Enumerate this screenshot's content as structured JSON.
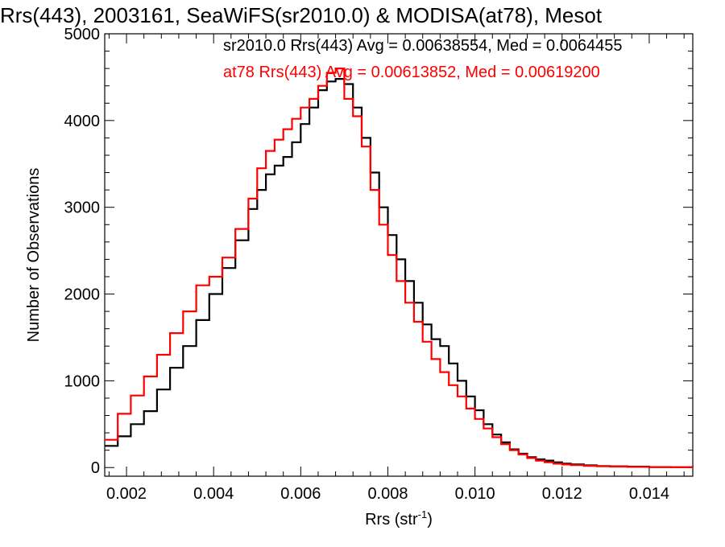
{
  "chart_data": {
    "type": "line",
    "title": "Rrs(443), 2003161, SeaWiFS(sr2010.0) & MODISA(at78), Mesot",
    "xlabel": "Rrs (str",
    "xlabel_sup": "-1",
    "xlabel_close": ")",
    "ylabel": "Number of Observations",
    "xlim": [
      0.0015,
      0.015
    ],
    "ylim": [
      -100,
      5000
    ],
    "x_ticks": [
      0.002,
      0.004,
      0.006,
      0.008,
      0.01,
      0.012,
      0.014
    ],
    "x_tick_labels": [
      "0.002",
      "0.004",
      "0.006",
      "0.008",
      "0.010",
      "0.012",
      "0.014"
    ],
    "y_ticks": [
      0,
      1000,
      2000,
      3000,
      4000,
      5000
    ],
    "y_tick_labels": [
      "0",
      "1000",
      "2000",
      "3000",
      "4000",
      "5000"
    ],
    "grid": false,
    "legend_placement": "top",
    "annotations": [
      {
        "text": "sr2010.0 Rrs(443) Avg = 0.00638554, Med = 0.0064455",
        "color": "#000000"
      },
      {
        "text": "at78 Rrs(443) Avg = 0.00613852, Med = 0.00619200",
        "color": "#ff0000"
      }
    ],
    "series": [
      {
        "color": "#000000",
        "x": [
          0.0015,
          0.0018,
          0.0021,
          0.0024,
          0.0027,
          0.003,
          0.0033,
          0.0036,
          0.0039,
          0.0042,
          0.0045,
          0.0048,
          0.005,
          0.0052,
          0.0054,
          0.0056,
          0.0058,
          0.006,
          0.0062,
          0.0064,
          0.0066,
          0.0068,
          0.007,
          0.0072,
          0.0074,
          0.0076,
          0.0078,
          0.008,
          0.0082,
          0.0084,
          0.0086,
          0.0088,
          0.009,
          0.0092,
          0.0094,
          0.0096,
          0.0098,
          0.01,
          0.0102,
          0.0104,
          0.0106,
          0.0108,
          0.011,
          0.0112,
          0.0114,
          0.0116,
          0.0118,
          0.012,
          0.0122,
          0.0125,
          0.0128,
          0.0131,
          0.0135,
          0.014,
          0.0145,
          0.015
        ],
        "values": [
          250,
          360,
          500,
          650,
          900,
          1150,
          1400,
          1700,
          2000,
          2300,
          2620,
          2980,
          3200,
          3380,
          3480,
          3580,
          3750,
          3960,
          4150,
          4350,
          4450,
          4480,
          4420,
          4150,
          3800,
          3400,
          3000,
          2680,
          2400,
          2150,
          1900,
          1650,
          1480,
          1400,
          1200,
          1000,
          820,
          660,
          500,
          380,
          290,
          210,
          160,
          120,
          95,
          80,
          60,
          45,
          35,
          25,
          18,
          14,
          10,
          6,
          3,
          2
        ]
      },
      {
        "color": "#ff0000",
        "x": [
          0.0015,
          0.0018,
          0.0021,
          0.0024,
          0.0027,
          0.003,
          0.0033,
          0.0036,
          0.0039,
          0.0042,
          0.0045,
          0.0048,
          0.005,
          0.0052,
          0.0054,
          0.0056,
          0.0058,
          0.006,
          0.0062,
          0.0064,
          0.0066,
          0.0068,
          0.007,
          0.0072,
          0.0074,
          0.0076,
          0.0078,
          0.008,
          0.0082,
          0.0084,
          0.0086,
          0.0088,
          0.009,
          0.0092,
          0.0094,
          0.0096,
          0.0098,
          0.01,
          0.0102,
          0.0104,
          0.0106,
          0.0108,
          0.011,
          0.0112,
          0.0114,
          0.0116,
          0.0118,
          0.012,
          0.0122,
          0.0125,
          0.0128,
          0.0131,
          0.0135,
          0.014,
          0.0145,
          0.015
        ],
        "values": [
          320,
          620,
          830,
          1050,
          1300,
          1550,
          1800,
          2100,
          2200,
          2420,
          2750,
          3100,
          3450,
          3650,
          3780,
          3900,
          4020,
          4150,
          4250,
          4400,
          4550,
          4600,
          4250,
          4050,
          3700,
          3200,
          2800,
          2450,
          2150,
          1900,
          1680,
          1450,
          1250,
          1100,
          950,
          820,
          680,
          560,
          450,
          350,
          270,
          200,
          150,
          110,
          80,
          60,
          45,
          35,
          28,
          20,
          15,
          11,
          8,
          5,
          3,
          2
        ]
      }
    ]
  }
}
